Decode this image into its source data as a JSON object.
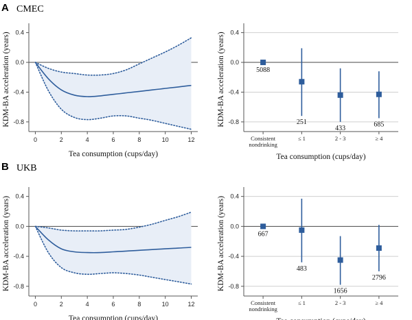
{
  "figure": {
    "sections": [
      {
        "letter": "A",
        "cohort": "CMEC"
      },
      {
        "letter": "B",
        "cohort": "UKB"
      }
    ]
  },
  "colors": {
    "accent": "#2e5d9c",
    "band": "#e8eef7",
    "zero_line": "#444444",
    "grid": "#cfcfcf"
  },
  "chart_data": [
    {
      "id": "A-curve",
      "type": "line",
      "cohort": "CMEC",
      "xlabel": "Tea consumption (cups/day)",
      "ylabel": "KDM-BA acceleration (years)",
      "xlim": [
        -0.5,
        12.5
      ],
      "ylim": [
        -0.93,
        0.47
      ],
      "xticks": [
        0,
        2,
        4,
        6,
        8,
        10,
        12
      ],
      "yticks": [
        0.4,
        0.0,
        -0.4,
        -0.8
      ],
      "ytick_labels": [
        "0.4",
        "0.0",
        "-0.4",
        "-0.8"
      ],
      "reference_line": 0,
      "x": [
        0,
        1,
        2,
        3,
        4,
        5,
        6,
        7,
        8,
        9,
        10,
        11,
        12
      ],
      "series": [
        {
          "role": "estimate",
          "style": "solid",
          "values": [
            0,
            -0.22,
            -0.37,
            -0.44,
            -0.46,
            -0.45,
            -0.43,
            -0.41,
            -0.39,
            -0.37,
            -0.35,
            -0.33,
            -0.31
          ]
        },
        {
          "role": "upper",
          "style": "dotted",
          "values": [
            0,
            -0.08,
            -0.13,
            -0.15,
            -0.17,
            -0.17,
            -0.15,
            -0.1,
            -0.02,
            0.06,
            0.14,
            0.23,
            0.33
          ]
        },
        {
          "role": "lower",
          "style": "dotted",
          "values": [
            0,
            -0.38,
            -0.63,
            -0.74,
            -0.77,
            -0.75,
            -0.72,
            -0.72,
            -0.75,
            -0.78,
            -0.82,
            -0.86,
            -0.9
          ]
        }
      ]
    },
    {
      "id": "A-categories",
      "type": "scatter",
      "cohort": "CMEC",
      "xlabel": "Tea consumption (cups/day)",
      "ylabel": "KDM-BA acceleration (years)",
      "ylim": [
        -0.93,
        0.47
      ],
      "yticks": [
        0.4,
        0.0,
        -0.4,
        -0.8
      ],
      "ytick_labels": [
        "0.4",
        "0.0",
        "-0.4",
        "-0.8"
      ],
      "reference_line": 0,
      "categories": [
        "Consistent nondrinking",
        "≤ 1",
        "2 - 3",
        "≥ 4"
      ],
      "category_labels": [
        [
          "Consistent",
          "nondrinking"
        ],
        [
          "≤ 1"
        ],
        [
          "2 - 3"
        ],
        [
          "≥ 4"
        ]
      ],
      "values": [
        0.0,
        -0.26,
        -0.44,
        -0.43
      ],
      "ci_low": [
        0.0,
        -0.72,
        -0.8,
        -0.75
      ],
      "ci_high": [
        0.0,
        0.19,
        -0.08,
        -0.12
      ],
      "n_labels": [
        "5088",
        "251",
        "433",
        "685"
      ],
      "n_label_pos": [
        "below",
        "below",
        "below",
        "below"
      ]
    },
    {
      "id": "B-curve",
      "type": "line",
      "cohort": "UKB",
      "xlabel": "Tea consumption (cups/day)",
      "ylabel": "KDM-BA acceleration (years)",
      "xlim": [
        -0.5,
        12.5
      ],
      "ylim": [
        -0.93,
        0.47
      ],
      "xticks": [
        0,
        2,
        4,
        6,
        8,
        10,
        12
      ],
      "yticks": [
        0.4,
        0.0,
        -0.4,
        -0.8
      ],
      "ytick_labels": [
        "0.4",
        "0.0",
        "-0.4",
        "-0.8"
      ],
      "reference_line": 0,
      "x": [
        0,
        1,
        2,
        3,
        4,
        5,
        6,
        7,
        8,
        9,
        10,
        11,
        12
      ],
      "series": [
        {
          "role": "estimate",
          "style": "solid",
          "values": [
            0,
            -0.18,
            -0.3,
            -0.34,
            -0.35,
            -0.35,
            -0.34,
            -0.33,
            -0.32,
            -0.31,
            -0.3,
            -0.29,
            -0.28
          ]
        },
        {
          "role": "upper",
          "style": "dotted",
          "values": [
            0,
            -0.02,
            -0.05,
            -0.06,
            -0.06,
            -0.06,
            -0.05,
            -0.04,
            -0.01,
            0.03,
            0.08,
            0.13,
            0.19
          ]
        },
        {
          "role": "lower",
          "style": "dotted",
          "values": [
            0,
            -0.35,
            -0.55,
            -0.62,
            -0.64,
            -0.63,
            -0.62,
            -0.63,
            -0.65,
            -0.68,
            -0.71,
            -0.74,
            -0.77
          ]
        }
      ]
    },
    {
      "id": "B-categories",
      "type": "scatter",
      "cohort": "UKB",
      "xlabel": "Tea consumption (cups/day)",
      "ylabel": "KDM-BA acceleration (years)",
      "ylim": [
        -0.93,
        0.47
      ],
      "yticks": [
        0.4,
        0.0,
        -0.4,
        -0.8
      ],
      "ytick_labels": [
        "0.4",
        "0.0",
        "-0.4",
        "-0.8"
      ],
      "reference_line": 0,
      "categories": [
        "Consistent nondrinking",
        "≤ 1",
        "2 - 3",
        "≥ 4"
      ],
      "category_labels": [
        [
          "Consistent",
          "nondrinking"
        ],
        [
          "≤ 1"
        ],
        [
          "2 - 3"
        ],
        [
          "≥ 4"
        ]
      ],
      "values": [
        0.0,
        -0.05,
        -0.45,
        -0.29
      ],
      "ci_low": [
        0.0,
        -0.48,
        -0.78,
        -0.6
      ],
      "ci_high": [
        0.0,
        0.37,
        -0.13,
        0.02
      ],
      "n_labels": [
        "667",
        "483",
        "1656",
        "2796"
      ],
      "n_label_pos": [
        "below",
        "below",
        "below",
        "below"
      ]
    }
  ]
}
